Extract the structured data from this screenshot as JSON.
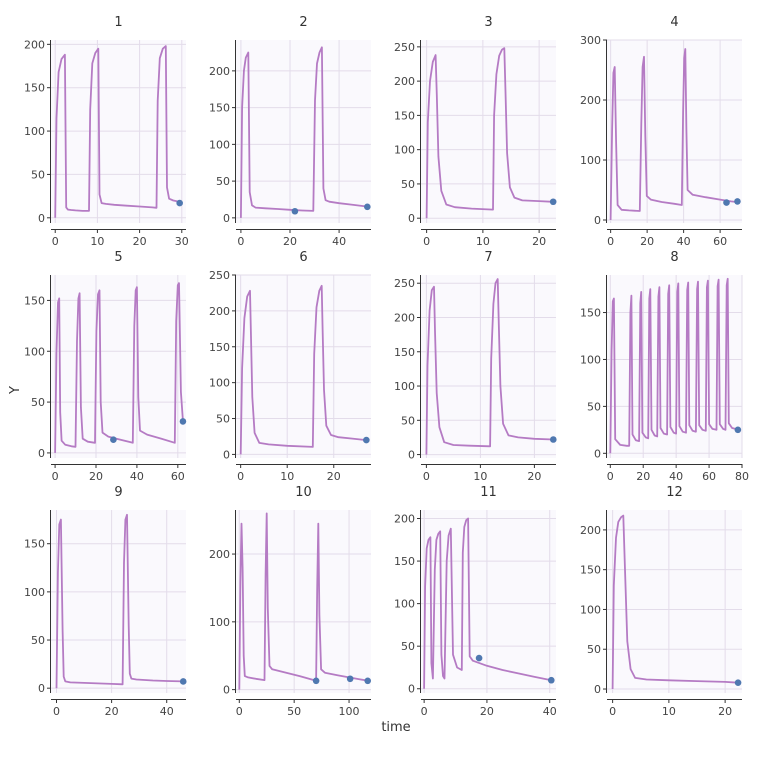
{
  "figure": {
    "xlabel": "time",
    "ylabel": "Y",
    "line_color": "#b57bc4",
    "point_color": "#4f78b0",
    "grid_color": "#e3dcea",
    "background": "#faf9fd"
  },
  "chart_data": [
    {
      "type": "line",
      "title": "1",
      "xlim": [
        -1,
        31
      ],
      "ylim": [
        -6,
        205
      ],
      "xticks": [
        0,
        10,
        20,
        30
      ],
      "yticks": [
        0,
        50,
        100,
        150,
        200
      ],
      "series": [
        {
          "x": [
            0,
            0.3,
            0.8,
            1.5,
            2.3,
            2.6,
            3,
            3.8,
            4.8,
            6.5,
            8,
            8.3,
            8.8,
            9.5,
            10.2,
            10.5,
            11,
            12,
            14,
            17,
            20,
            23,
            24,
            24.3,
            24.8,
            25.5,
            26.2,
            26.5,
            27,
            28,
            30
          ],
          "y": [
            0,
            115,
            168,
            183,
            188,
            12,
            9.5,
            9,
            8.5,
            8,
            8,
            125,
            178,
            190,
            195,
            27,
            17,
            16,
            15,
            14,
            13,
            12,
            11.5,
            135,
            184,
            195,
            198,
            35,
            22,
            20,
            18
          ]
        }
      ],
      "points": {
        "x": [
          29.5
        ],
        "y": [
          17
        ]
      }
    },
    {
      "type": "line",
      "title": "2",
      "xlim": [
        -2,
        53
      ],
      "ylim": [
        -7,
        242
      ],
      "xticks": [
        0,
        20,
        40
      ],
      "yticks": [
        0,
        50,
        100,
        150,
        200
      ],
      "series": [
        {
          "x": [
            0,
            0.5,
            1.2,
            2,
            3,
            3.6,
            4.5,
            6,
            10,
            15,
            20,
            25,
            29.5,
            30.2,
            31,
            32,
            33,
            33.6,
            34.5,
            36,
            40,
            45,
            50,
            52
          ],
          "y": [
            0,
            150,
            200,
            218,
            225,
            35,
            17,
            14,
            13,
            12,
            11,
            10,
            9.5,
            160,
            210,
            225,
            232,
            40,
            24,
            22,
            20,
            18,
            16,
            15
          ]
        }
      ],
      "points": {
        "x": [
          22,
          51.5
        ],
        "y": [
          9,
          15
        ]
      }
    },
    {
      "type": "line",
      "title": "3",
      "xlim": [
        -1,
        23
      ],
      "ylim": [
        -7,
        260
      ],
      "xticks": [
        0,
        10,
        20
      ],
      "yticks": [
        0,
        50,
        100,
        150,
        200,
        250
      ],
      "series": [
        {
          "x": [
            0,
            0.2,
            0.6,
            1.1,
            1.6,
            1.8,
            2.1,
            2.6,
            3.5,
            5,
            8,
            11.8,
            12,
            12.4,
            12.9,
            13.4,
            13.8,
            14,
            14.3,
            14.8,
            15.6,
            17,
            20,
            22.5
          ],
          "y": [
            0,
            140,
            200,
            228,
            238,
            180,
            90,
            40,
            20,
            16,
            14,
            12.5,
            150,
            210,
            237,
            246,
            248,
            190,
            95,
            45,
            30,
            26,
            25,
            24
          ]
        }
      ],
      "points": {
        "x": [
          22.5
        ],
        "y": [
          24
        ]
      }
    },
    {
      "type": "line",
      "title": "4",
      "xlim": [
        -2,
        72
      ],
      "ylim": [
        -5,
        300
      ],
      "xticks": [
        0,
        20,
        40,
        60
      ],
      "yticks": [
        0,
        100,
        200,
        300
      ],
      "series": [
        {
          "x": [
            0,
            0.8,
            1.5,
            2.2,
            3,
            3.8,
            6,
            10,
            16,
            16.8,
            17.5,
            18.3,
            19,
            19.8,
            22,
            28,
            35,
            39,
            39.7,
            40.3,
            40.9,
            41.5,
            42.2,
            45,
            52,
            60,
            66,
            69
          ],
          "y": [
            0,
            150,
            245,
            255,
            130,
            25,
            17,
            16,
            15,
            160,
            255,
            272,
            140,
            40,
            34,
            30,
            27,
            25,
            180,
            270,
            285,
            150,
            50,
            42,
            38,
            34,
            31,
            30
          ]
        }
      ],
      "points": {
        "x": [
          63.5,
          69.5
        ],
        "y": [
          29,
          31
        ]
      }
    },
    {
      "type": "line",
      "title": "5",
      "xlim": [
        -2,
        64
      ],
      "ylim": [
        -5,
        175
      ],
      "xticks": [
        0,
        20,
        40,
        60
      ],
      "yticks": [
        0,
        50,
        100,
        150
      ],
      "series": [
        {
          "x": [
            0,
            0.7,
            1.4,
            2,
            2.5,
            3.2,
            5,
            8,
            10,
            10.7,
            11.4,
            12,
            12.6,
            13.5,
            16,
            19.5,
            20.2,
            21,
            21.7,
            22.3,
            23.2,
            26,
            30,
            38,
            38.7,
            39.4,
            40,
            40.7,
            41.5,
            45,
            52,
            58.5,
            59.2,
            60,
            60.6,
            61.5,
            62.5
          ],
          "y": [
            0,
            100,
            148,
            152,
            40,
            12,
            8,
            6.5,
            6,
            110,
            152,
            157,
            45,
            14,
            11,
            10,
            120,
            156,
            160,
            50,
            20,
            16,
            14,
            10,
            125,
            160,
            163,
            55,
            22,
            18,
            14,
            10,
            130,
            165,
            167,
            60,
            32
          ]
        }
      ],
      "points": {
        "x": [
          28.5,
          62.5
        ],
        "y": [
          13,
          31
        ]
      }
    },
    {
      "type": "line",
      "title": "6",
      "xlim": [
        -1,
        28
      ],
      "ylim": [
        -5,
        250
      ],
      "xticks": [
        0,
        10,
        20
      ],
      "yticks": [
        0,
        50,
        100,
        150,
        200,
        250
      ],
      "series": [
        {
          "x": [
            0,
            0.3,
            0.8,
            1.4,
            2,
            2.2,
            2.5,
            3,
            4,
            6,
            10,
            15.5,
            15.8,
            16.3,
            16.9,
            17.4,
            17.6,
            17.9,
            18.4,
            19.4,
            21,
            24,
            27
          ],
          "y": [
            0,
            120,
            190,
            220,
            228,
            170,
            80,
            30,
            16,
            14,
            12,
            10.5,
            140,
            205,
            228,
            235,
            175,
            90,
            40,
            27,
            24,
            22,
            20
          ]
        }
      ],
      "points": {
        "x": [
          27
        ],
        "y": [
          20
        ]
      }
    },
    {
      "type": "line",
      "title": "7",
      "xlim": [
        -1,
        24
      ],
      "ylim": [
        -5,
        262
      ],
      "xticks": [
        0,
        10,
        20
      ],
      "yticks": [
        0,
        50,
        100,
        150,
        200,
        250
      ],
      "series": [
        {
          "x": [
            0,
            0.2,
            0.6,
            1,
            1.4,
            1.6,
            1.9,
            2.4,
            3.3,
            5,
            8,
            11.8,
            12,
            12.4,
            12.8,
            13.2,
            13.4,
            13.7,
            14.2,
            15.2,
            17,
            20,
            23.5
          ],
          "y": [
            0,
            130,
            210,
            240,
            245,
            180,
            90,
            40,
            18,
            14,
            13,
            12,
            140,
            220,
            250,
            256,
            190,
            100,
            45,
            28,
            25,
            23,
            22
          ]
        }
      ],
      "points": {
        "x": [
          23.5
        ],
        "y": [
          22
        ]
      }
    },
    {
      "type": "line",
      "title": "8",
      "xlim": [
        -2,
        80
      ],
      "ylim": [
        -5,
        190
      ],
      "xticks": [
        0,
        20,
        40,
        60,
        80
      ],
      "yticks": [
        0,
        50,
        100,
        150
      ],
      "series": [
        {
          "x": [
            0,
            0.8,
            1.5,
            2.2,
            3,
            6,
            10,
            11.5,
            12.2,
            12.8,
            13.5,
            15.5,
            17.5,
            18.2,
            18.8,
            19.5,
            21.5,
            23,
            23.7,
            24.3,
            25,
            27,
            28.5,
            29.2,
            29.8,
            30.5,
            32.5,
            34.5,
            35.2,
            35.8,
            36.5,
            38.5,
            40,
            40.7,
            41.3,
            42,
            44,
            46,
            46.7,
            47.3,
            48,
            50,
            52,
            52.7,
            53.3,
            54,
            56,
            58,
            58.7,
            59.3,
            60,
            62,
            64.5,
            65.2,
            65.8,
            66.5,
            68.5,
            70,
            70.7,
            71.3,
            72,
            74,
            76,
            78
          ],
          "y": [
            0,
            110,
            162,
            165,
            15,
            9,
            8,
            8,
            150,
            168,
            20,
            14,
            13,
            160,
            172,
            22,
            17,
            16,
            165,
            175,
            25,
            19,
            18,
            167,
            177,
            27,
            21,
            20,
            170,
            179,
            28,
            22,
            21,
            172,
            181,
            29,
            23,
            22,
            174,
            182,
            30,
            24,
            23,
            175,
            183,
            30,
            25,
            24,
            177,
            184,
            31,
            26,
            25,
            178,
            185,
            31,
            26,
            25,
            179,
            186,
            32,
            27,
            26,
            25
          ]
        }
      ],
      "points": {
        "x": [
          77.5
        ],
        "y": [
          25
        ]
      }
    },
    {
      "type": "line",
      "title": "9",
      "xlim": [
        -2,
        47
      ],
      "ylim": [
        -5,
        185
      ],
      "xticks": [
        0,
        20,
        40
      ],
      "yticks": [
        0,
        50,
        100,
        150
      ],
      "series": [
        {
          "x": [
            0,
            0.5,
            1,
            1.6,
            2.2,
            2.6,
            3.2,
            5,
            10,
            15,
            20,
            24,
            24.5,
            25,
            25.6,
            26.2,
            26.6,
            27.2,
            29,
            35,
            40,
            46
          ],
          "y": [
            0,
            120,
            170,
            175,
            60,
            12,
            7,
            6,
            5.5,
            5,
            4.5,
            4,
            130,
            175,
            180,
            65,
            15,
            10,
            9,
            8,
            7.5,
            7
          ]
        }
      ],
      "points": {
        "x": [
          46
        ],
        "y": [
          7
        ]
      }
    },
    {
      "type": "line",
      "title": "10",
      "xlim": [
        -3,
        120
      ],
      "ylim": [
        -5,
        265
      ],
      "xticks": [
        0,
        50,
        100
      ],
      "yticks": [
        0,
        100,
        200
      ],
      "series": [
        {
          "x": [
            0,
            1,
            2,
            3,
            4,
            5,
            8,
            15,
            23,
            24,
            25,
            26,
            27.5,
            30,
            40,
            55,
            68,
            70,
            71,
            72,
            73,
            74.5,
            78,
            90,
            100,
            110,
            118
          ],
          "y": [
            0,
            160,
            245,
            180,
            50,
            20,
            18,
            16,
            14,
            170,
            260,
            120,
            35,
            30,
            26,
            20,
            14,
            12,
            150,
            245,
            110,
            30,
            25,
            21,
            18,
            15,
            13
          ]
        }
      ],
      "points": {
        "x": [
          70,
          101,
          117
        ],
        "y": [
          13,
          16,
          13
        ]
      }
    },
    {
      "type": "line",
      "title": "11",
      "xlim": [
        -1,
        42
      ],
      "ylim": [
        -5,
        210
      ],
      "xticks": [
        0,
        20,
        40
      ],
      "yticks": [
        0,
        50,
        100,
        150,
        200
      ],
      "series": [
        {
          "x": [
            0,
            0.3,
            0.8,
            1.4,
            2,
            2.3,
            2.8,
            3.4,
            3.9,
            4.5,
            5.1,
            5.5,
            6,
            6.5,
            7.2,
            7.8,
            8.5,
            9.2,
            10.5,
            12,
            12.3,
            12.8,
            13.4,
            14,
            14.5,
            15.5,
            20,
            25,
            30,
            35,
            40.5
          ],
          "y": [
            0,
            120,
            165,
            175,
            178,
            30,
            12,
            140,
            175,
            182,
            185,
            40,
            15,
            12,
            150,
            180,
            188,
            40,
            25,
            22,
            160,
            190,
            198,
            200,
            38,
            33,
            27,
            22,
            18,
            14,
            10
          ]
        }
      ],
      "points": {
        "x": [
          17.5,
          40.5
        ],
        "y": [
          36,
          10
        ]
      }
    },
    {
      "type": "line",
      "title": "12",
      "xlim": [
        -1,
        23
      ],
      "ylim": [
        -5,
        225
      ],
      "xticks": [
        0,
        10,
        20
      ],
      "yticks": [
        0,
        50,
        100,
        150,
        200
      ],
      "series": [
        {
          "x": [
            0,
            0.2,
            0.6,
            1,
            1.5,
            1.9,
            2.2,
            2.6,
            3.2,
            4,
            6,
            10,
            15,
            20,
            22.3
          ],
          "y": [
            0,
            130,
            190,
            210,
            216,
            218,
            150,
            60,
            25,
            14,
            12,
            11,
            10,
            9,
            8
          ]
        }
      ],
      "points": {
        "x": [
          22.3
        ],
        "y": [
          8
        ]
      }
    }
  ]
}
